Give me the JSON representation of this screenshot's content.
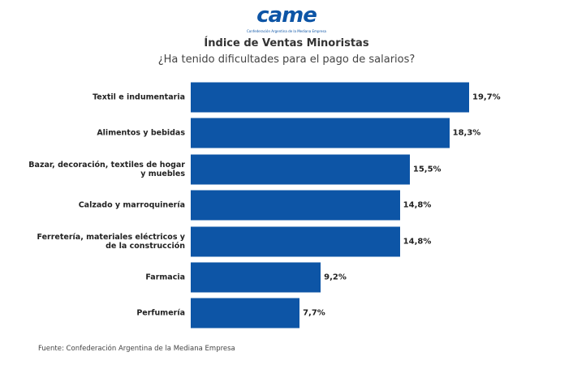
{
  "logo": {
    "text": "came",
    "tagline": "Confederación Argentina de la Mediana Empresa"
  },
  "chart_data": {
    "type": "bar",
    "orientation": "horizontal",
    "title": "Índice de Ventas Minoristas",
    "subtitle": "¿Ha tenido dificultades para el pago de salarios?",
    "categories": [
      "Textil e indumentaria",
      "Alimentos y bebidas",
      "Bazar, decoración, textiles de hogar y muebles",
      "Calzado y marroquinería",
      "Ferretería, materiales eléctricos y de la construcción",
      "Farmacia",
      "Perfumería"
    ],
    "values": [
      19.7,
      18.3,
      15.5,
      14.8,
      14.8,
      9.2,
      7.7
    ],
    "value_labels": [
      "19,7%",
      "18,3%",
      "15,5%",
      "14,8%",
      "14,8%",
      "9,2%",
      "7,7%"
    ],
    "color": "#0d55a6",
    "source": "Fuente: Confederación Argentina de la Mediana Empresa"
  }
}
